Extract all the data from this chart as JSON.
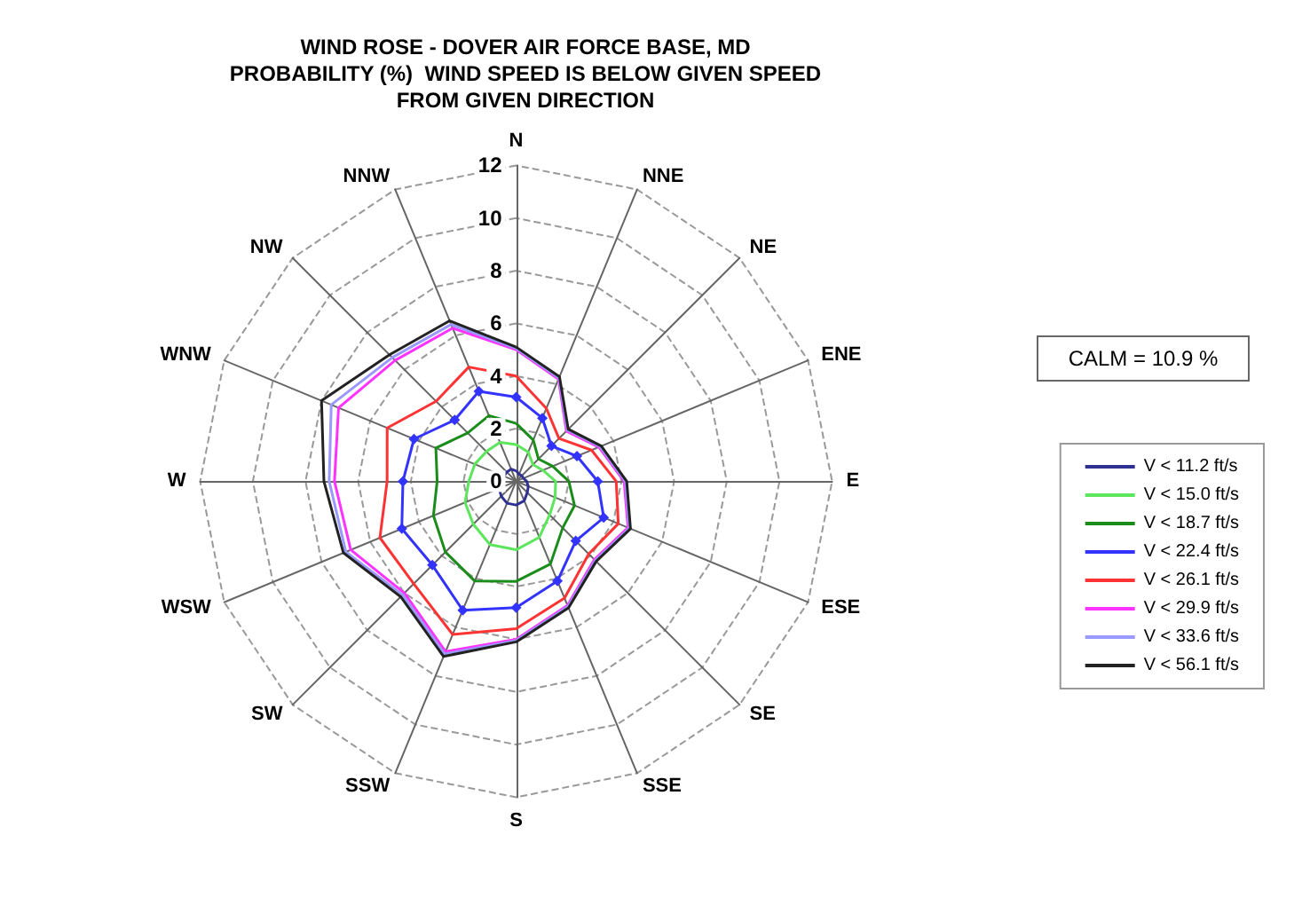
{
  "chart_data": {
    "type": "radar",
    "title": "WIND ROSE - DOVER AIR FORCE BASE, MD\nPROBABILITY (%)  WIND SPEED IS BELOW GIVEN SPEED\nFROM GIVEN DIRECTION",
    "categories": [
      "N",
      "NNE",
      "NE",
      "ENE",
      "E",
      "ESE",
      "SE",
      "SSE",
      "S",
      "SSW",
      "SW",
      "WSW",
      "W",
      "WNW",
      "NW",
      "NNW"
    ],
    "ylim": [
      0,
      12
    ],
    "yticks": [
      0,
      2,
      4,
      6,
      8,
      10,
      12
    ],
    "grid": true,
    "legend": "right",
    "marker": "none",
    "line_style": "solid",
    "annotations": [
      "CALM = 10.9 %"
    ],
    "series": [
      {
        "name": "V < 11.2 ft/s",
        "color": "#2e3192",
        "values": [
          0.4,
          0.3,
          0.3,
          0.3,
          0.4,
          0.5,
          0.6,
          0.8,
          0.9,
          0.9,
          0.8,
          0.7,
          0.6,
          0.5,
          0.5,
          0.5
        ]
      },
      {
        "name": "V < 15.0 ft/s",
        "color": "#5ce65c",
        "values": [
          1.4,
          1.2,
          0.9,
          1.1,
          1.5,
          1.6,
          1.8,
          2.3,
          2.6,
          2.6,
          2.3,
          2.1,
          1.8,
          1.7,
          1.6,
          1.6
        ]
      },
      {
        "name": "V < 18.7 ft/s",
        "color": "#1a8c1a",
        "values": [
          2.2,
          1.7,
          1.2,
          1.5,
          2.0,
          2.4,
          2.5,
          3.4,
          3.8,
          4.1,
          3.8,
          3.4,
          3.0,
          3.3,
          2.6,
          2.7
        ]
      },
      {
        "name": "V < 22.4 ft/s",
        "color": "#3333ff",
        "marker": "diamond",
        "values": [
          3.2,
          2.6,
          1.9,
          2.5,
          3.1,
          3.6,
          3.2,
          4.1,
          4.8,
          5.3,
          4.5,
          4.7,
          4.3,
          4.2,
          3.3,
          3.7
        ]
      },
      {
        "name": "V < 26.1 ft/s",
        "color": "#ff3333",
        "values": [
          4.0,
          3.0,
          2.3,
          3.1,
          3.8,
          4.2,
          3.9,
          4.8,
          5.6,
          6.3,
          5.5,
          5.6,
          4.9,
          5.3,
          4.3,
          4.7
        ]
      },
      {
        "name": "V < 29.9 ft/s",
        "color": "#ff33ff",
        "values": [
          5.0,
          4.2,
          2.7,
          3.4,
          4.1,
          4.6,
          4.2,
          5.1,
          6.0,
          7.0,
          6.0,
          6.8,
          6.9,
          7.3,
          6.5,
          6.3
        ]
      },
      {
        "name": "V < 33.6 ft/s",
        "color": "#9999ff",
        "values": [
          5.05,
          4.25,
          2.75,
          3.45,
          4.15,
          4.65,
          4.25,
          5.15,
          6.05,
          7.1,
          6.1,
          7.0,
          7.1,
          7.6,
          6.65,
          6.45
        ]
      },
      {
        "name": "V < 56.1 ft/s",
        "color": "#222222",
        "values": [
          5.1,
          4.3,
          2.8,
          3.5,
          4.2,
          4.7,
          4.3,
          5.2,
          6.1,
          7.2,
          6.2,
          7.1,
          7.3,
          8.0,
          6.8,
          6.6
        ]
      }
    ]
  }
}
